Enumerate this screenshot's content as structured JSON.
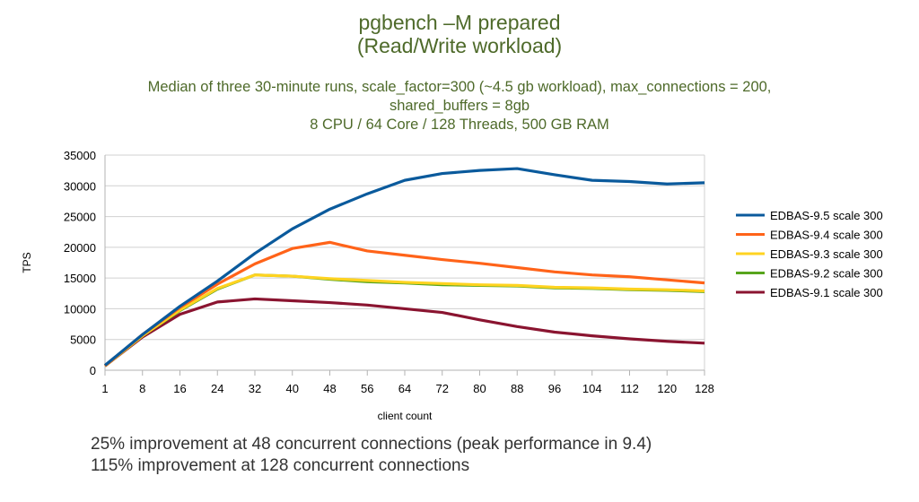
{
  "header": {
    "title_line1": "pgbench –M prepared",
    "title_line2": "(Read/Write workload)",
    "subtitle_line1": "Median of three 30-minute runs, scale_factor=300 (~4.5 gb workload), max_connections = 200,",
    "subtitle_line2": "shared_buffers = 8gb",
    "subtitle_line3": "8 CPU / 64 Core / 128 Threads, 500 GB RAM"
  },
  "notes": [
    "25% improvement at 48 concurrent connections (peak performance in 9.4)",
    "115% improvement at 128 concurrent connections"
  ],
  "chart_data": {
    "type": "line",
    "title": "pgbench –M prepared (Read/Write workload)",
    "xlabel": "client count",
    "ylabel": "TPS",
    "ylim": [
      0,
      35000
    ],
    "grid": true,
    "legend": "right",
    "yticks": [
      0,
      5000,
      10000,
      15000,
      20000,
      25000,
      30000,
      35000
    ],
    "categories": [
      "1",
      "8",
      "16",
      "24",
      "32",
      "40",
      "48",
      "56",
      "64",
      "72",
      "80",
      "88",
      "96",
      "104",
      "112",
      "120",
      "128"
    ],
    "series": [
      {
        "name": "EDBAS-9.5 scale 300",
        "color": "#0a5a9c",
        "values": [
          800,
          5800,
          10400,
          14500,
          19000,
          23000,
          26200,
          28700,
          30900,
          32000,
          32500,
          32800,
          31800,
          30900,
          30700,
          30300,
          30500
        ]
      },
      {
        "name": "EDBAS-9.4 scale 300",
        "color": "#ff6319",
        "values": [
          700,
          5800,
          10200,
          14000,
          17300,
          19800,
          20800,
          19400,
          18700,
          18000,
          17400,
          16700,
          16000,
          15500,
          15200,
          14700,
          14200
        ]
      },
      {
        "name": "EDBAS-9.3 scale 300",
        "color": "#ffd320",
        "values": [
          700,
          5600,
          9800,
          13300,
          15500,
          15300,
          14900,
          14600,
          14300,
          14100,
          13900,
          13800,
          13500,
          13400,
          13200,
          13100,
          12900
        ]
      },
      {
        "name": "EDBAS-9.2 scale 300",
        "color": "#57a51c",
        "values": [
          700,
          5600,
          9700,
          13200,
          15500,
          15300,
          14800,
          14400,
          14200,
          13900,
          13800,
          13700,
          13400,
          13300,
          13100,
          13000,
          12800
        ]
      },
      {
        "name": "EDBAS-9.1 scale 300",
        "color": "#8a1430",
        "values": [
          700,
          5400,
          9100,
          11100,
          11600,
          11300,
          11000,
          10600,
          10000,
          9400,
          8200,
          7100,
          6200,
          5600,
          5100,
          4700,
          4400
        ]
      }
    ]
  }
}
